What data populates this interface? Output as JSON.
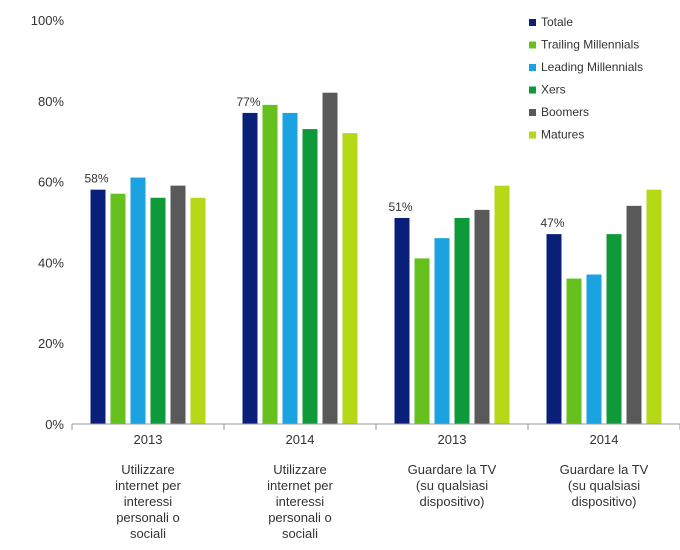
{
  "chart_data": {
    "type": "bar",
    "categories": [
      {
        "year": "2013",
        "label_lines": [
          "Utilizzare",
          "internet per",
          "interessi",
          "personali o",
          "sociali"
        ]
      },
      {
        "year": "2014",
        "label_lines": [
          "Utilizzare",
          "internet per",
          "interessi",
          "personali o",
          "sociali"
        ]
      },
      {
        "year": "2013",
        "label_lines": [
          "Guardare la TV",
          "(su qualsiasi",
          "dispositivo)"
        ]
      },
      {
        "year": "2014",
        "label_lines": [
          "Guardare la TV",
          "(su qualsiasi",
          "dispositivo)"
        ]
      }
    ],
    "series": [
      {
        "name": "Totale",
        "color": "#0a1f7a",
        "values": [
          58,
          77,
          51,
          47
        ]
      },
      {
        "name": "Trailing Millennials",
        "color": "#66c11f",
        "values": [
          57,
          79,
          41,
          36
        ]
      },
      {
        "name": "Leading Millennials",
        "color": "#1aa3e0",
        "values": [
          61,
          77,
          46,
          37
        ]
      },
      {
        "name": "Xers",
        "color": "#0f9a3a",
        "values": [
          56,
          73,
          51,
          47
        ]
      },
      {
        "name": "Boomers",
        "color": "#595959",
        "values": [
          59,
          82,
          53,
          54
        ]
      },
      {
        "name": "Matures",
        "color": "#b5d916",
        "values": [
          56,
          72,
          59,
          58
        ]
      }
    ],
    "data_labels": [
      "58%",
      "77%",
      "51%",
      "47%"
    ],
    "y_ticks": [
      "0%",
      "20%",
      "40%",
      "60%",
      "80%",
      "100%"
    ],
    "ylim": [
      0,
      100
    ],
    "legend_position": "top-right",
    "grid": false
  }
}
